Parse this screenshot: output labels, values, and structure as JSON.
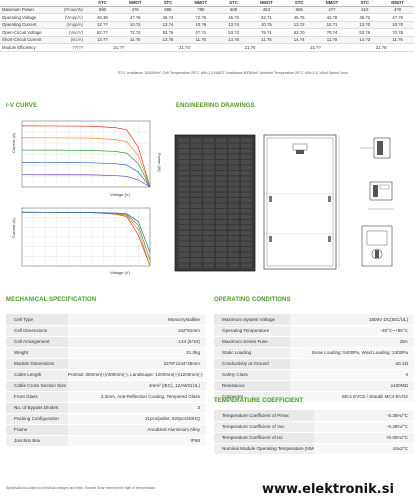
{
  "electrical": {
    "headers": [
      "STC",
      "NMOT",
      "STC",
      "NMOT",
      "STC",
      "NMOT",
      "STC",
      "NMOT",
      "STC",
      "NMOT"
    ],
    "rows": [
      {
        "label": "Maximum Power",
        "unit": "(Pmax/W)",
        "values": [
          "590",
          "4?6",
          "595",
          "?80",
          "600",
          "453",
          "605",
          "4?7",
          "610",
          "4?0"
        ]
      },
      {
        "label": "Operating Voltage",
        "unit": "(Vmpp/V)",
        "values": [
          "45.38",
          "4?.?8",
          "45.?4",
          "?2.?5",
          "45.?0",
          "42.?1",
          "45.?6",
          "42.?8",
          "46.?2",
          "4?.?0"
        ]
      },
      {
        "label": "Operating Current",
        "unit": "(Impp/A)",
        "values": [
          "12.??",
          "10.?2",
          "13.?4",
          "10.?8",
          "13.?4",
          "10.?5",
          "13.?2",
          "10.?1",
          "13.?0",
          "10.?0"
        ]
      },
      {
        "label": "Open-Circuit Voltage",
        "unit": "(Voc/V)",
        "values": [
          "52.??",
          "?2.?2",
          "52.?6",
          "4?.?1",
          "53.?2",
          "?9.?1",
          "53.?0",
          "?0.?4",
          "53.?6",
          "?0.?5"
        ]
      },
      {
        "label": "Short-Circuit Current",
        "unit": "(Isc/A)",
        "values": [
          "13.??",
          "11.?0",
          "13.?5",
          "11.?0",
          "13.?6",
          "11.?5",
          "14.?4",
          "11.?0",
          "14.?3",
          "11.?6"
        ]
      },
      {
        "label": "Module Efficiency",
        "unit": "??/??",
        "values": [
          "21.??",
          "",
          "21.?3",
          "",
          "21.?0",
          "",
          "21.??",
          "",
          "21.?8",
          ""
        ]
      }
    ]
  },
  "elec_footnote": "STC: Irradiance 1000W/m², Cell Temperature 25°C, AM=1.5    NMOT: Irradiance 800W/m², Ambient Temperature 20°C, AM=1.5, Wind Speed 1m/s",
  "sections": {
    "iv_curve": "I-V CURVE",
    "engineering": "ENGINEERING DRAWINGS",
    "mechanical": "MECHANICAL SPECIFICATION",
    "operating": "OPERATING CONDITIONS",
    "temperature": "TEMPERATURE COEFFICIENT"
  },
  "chart_data": [
    {
      "type": "line",
      "title": "",
      "xlabel": "Voltage (V)",
      "ylabel": "Current (A)",
      "y2label": "Power (W)",
      "x": [
        0,
        10,
        20,
        30,
        40,
        45,
        50,
        55
      ],
      "xlim": [
        0,
        55
      ],
      "ylim": [
        0,
        15
      ],
      "y2lim": [
        0,
        700
      ],
      "series": [
        {
          "values": [
            13.9,
            13.88,
            13.85,
            13.8,
            13.5,
            13.0,
            9.0,
            0
          ]
        },
        {
          "values": [
            11.2,
            11.18,
            11.15,
            11.1,
            10.8,
            10.3,
            7.1,
            0
          ]
        },
        {
          "values": [
            8.4,
            8.38,
            8.36,
            8.3,
            8.1,
            7.7,
            5.3,
            0
          ]
        },
        {
          "values": [
            5.6,
            5.58,
            5.56,
            5.5,
            5.3,
            5.0,
            3.4,
            0
          ]
        },
        {
          "values": [
            2.8,
            2.79,
            2.78,
            2.75,
            2.6,
            2.4,
            1.6,
            0
          ]
        }
      ]
    },
    {
      "type": "line",
      "title": "",
      "xlabel": "Voltage (V)",
      "ylabel": "Current (A)",
      "x": [
        0,
        10,
        20,
        30,
        40,
        45,
        50,
        55
      ],
      "xlim": [
        0,
        55
      ],
      "ylim": [
        0,
        15
      ],
      "series": [
        {
          "values": [
            13.9,
            13.88,
            13.85,
            13.8,
            13.4,
            12.8,
            8.0,
            0
          ]
        },
        {
          "values": [
            13.9,
            13.88,
            13.85,
            13.8,
            13.5,
            13.1,
            9.4,
            0
          ]
        },
        {
          "values": [
            13.9,
            13.88,
            13.85,
            13.82,
            13.6,
            13.3,
            10.5,
            1.5
          ]
        },
        {
          "values": [
            13.9,
            13.88,
            13.86,
            13.83,
            13.7,
            13.5,
            11.5,
            3.5
          ]
        }
      ]
    }
  ],
  "mechanical": [
    {
      "k": "Cell Type",
      "v": "Monocrystalline"
    },
    {
      "k": "Cell Dimensions",
      "v": "182*91mm"
    },
    {
      "k": "Cell Arrangement",
      "v": "144 (6*24)"
    },
    {
      "k": "Weight",
      "v": "31.0kg"
    },
    {
      "k": "Module Dimensions",
      "v": "2278*1134*35mm"
    },
    {
      "k": "Cable Length",
      "v": "Portrait: 300mm(+)/400mm(-), Landscape: 1200mm(+)/1200mm(-)"
    },
    {
      "k": "Cable Cross Section Size",
      "v": "4mm² (IEC), 12AWG(UL)"
    },
    {
      "k": "Front Glass",
      "v": "3.2mm, Anti-Reflection Coating, Tempered Glass"
    },
    {
      "k": "No. of Bypass Diodes",
      "v": "3"
    },
    {
      "k": "Packing Configuration",
      "v": "31pcs/pallet, 620pcs/40HQ"
    },
    {
      "k": "Frame",
      "v": "Anodized Aluminium Alloy"
    },
    {
      "k": "Junction Box",
      "v": "IP68"
    }
  ],
  "operating": [
    {
      "k": "Maximum System Voltage",
      "v": "1500V DC(IEC/UL)"
    },
    {
      "k": "Operating Temperature",
      "v": "-40°C~+85°C"
    },
    {
      "k": "Maximum Series Fuse",
      "v": "25A"
    },
    {
      "k": "Static Loading",
      "v": "Snow Loading: 5400Pa, Wind Loading: 2400Pa"
    },
    {
      "k": "Conductivity at Ground",
      "v": "≤0.1Ω"
    },
    {
      "k": "Safety Class",
      "v": "II"
    },
    {
      "k": "Resistance",
      "v": "≥100MΩ"
    },
    {
      "k": "Connector",
      "v": "MC4 EVO2 / Stäubli MC4-EVO2"
    }
  ],
  "temperature": [
    {
      "k": "Temperature Coefficient of Pmax",
      "v": "-0.35%/°C"
    },
    {
      "k": "Temperature Coefficient of Voc",
      "v": "-0.28%/°C"
    },
    {
      "k": "Temperature Coefficient of Isc",
      "v": "+0.05%/°C"
    },
    {
      "k": "Nominal Module Operating Temperature (NMOT)",
      "v": "44±2°C"
    }
  ],
  "bottom_note": "Specifications subject to technical changes and tests. Sunrain Solar reserves the right of interpretation.",
  "watermark": "www.elektronik.si",
  "colors": {
    "accent": "#4d9a2a",
    "panel": "#3a3a3a",
    "grid": "#cfcfcf"
  }
}
